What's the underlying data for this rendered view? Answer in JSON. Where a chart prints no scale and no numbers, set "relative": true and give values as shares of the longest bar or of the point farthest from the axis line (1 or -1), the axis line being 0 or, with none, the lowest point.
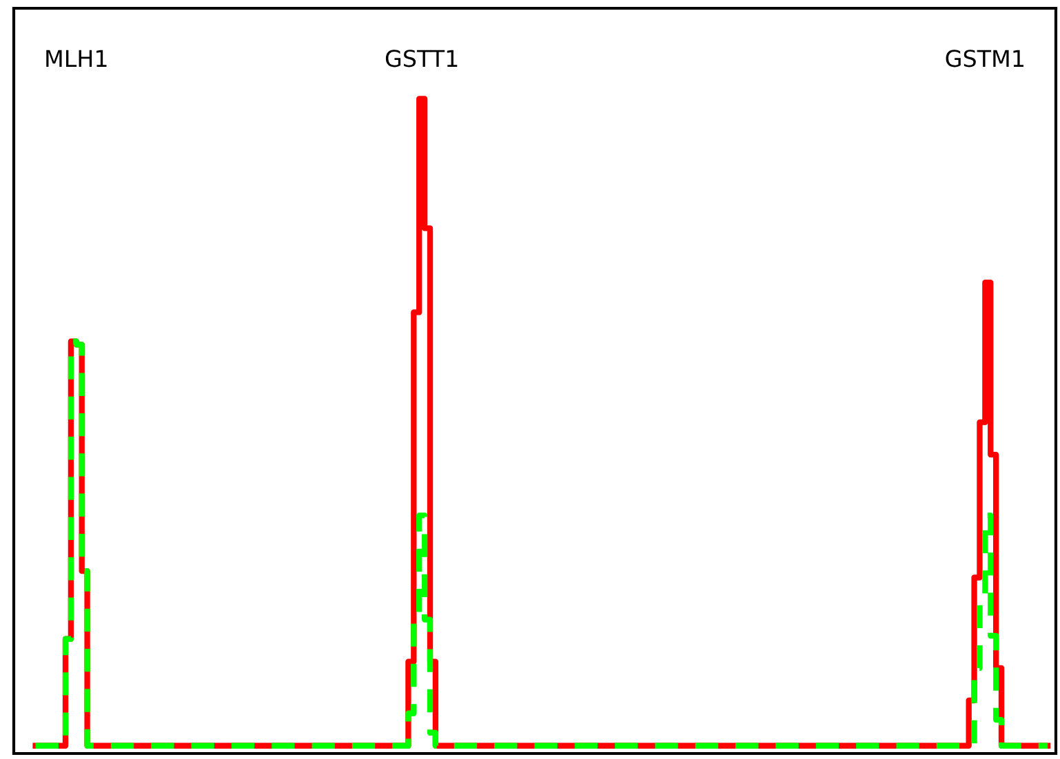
{
  "chart_data": {
    "type": "step",
    "relative": true,
    "categories": [
      null,
      null,
      null,
      null,
      null,
      null,
      null,
      null,
      null,
      null,
      null,
      null,
      null,
      null,
      null,
      null,
      null,
      null,
      null,
      null,
      null,
      null,
      null,
      null,
      null,
      null,
      null,
      null,
      null,
      null,
      null,
      null,
      null,
      null,
      null,
      null,
      null,
      null,
      null,
      null,
      null,
      null,
      null,
      null,
      null,
      null,
      null,
      null,
      null,
      null,
      null,
      null,
      null,
      null,
      null,
      null,
      null,
      null,
      null,
      null,
      null,
      null,
      null,
      null,
      null,
      null,
      null,
      null,
      null,
      null,
      null,
      null,
      null,
      null,
      null,
      null,
      null,
      null,
      null,
      null,
      null,
      null,
      null,
      null,
      null,
      null,
      null,
      null,
      null,
      null,
      null,
      null,
      null,
      null,
      null,
      null,
      null,
      null,
      null,
      null,
      null,
      null,
      null,
      null,
      null,
      null,
      null,
      null,
      null,
      null,
      null,
      null,
      null,
      null,
      null,
      null,
      null,
      null,
      null,
      null,
      null,
      null,
      null,
      null,
      null,
      null,
      null,
      null,
      null,
      null,
      null,
      null,
      null,
      null,
      null,
      null,
      null,
      null,
      null,
      null,
      null,
      null,
      null,
      null,
      null,
      null,
      null,
      null,
      null,
      null,
      null,
      null,
      null,
      null,
      null,
      null,
      null,
      null,
      null,
      null,
      null,
      null,
      null,
      null,
      null,
      null,
      null,
      null,
      null,
      null,
      null,
      null,
      null,
      null,
      null,
      null,
      null,
      null,
      null,
      null,
      null,
      null,
      null,
      null,
      null,
      null,
      null
    ],
    "series": [
      {
        "color": "#ff0000",
        "line_style": "solid",
        "values": [
          0,
          0,
          0,
          0,
          0,
          0,
          0.165,
          0.625,
          0.62,
          0.27,
          0,
          0,
          0,
          0,
          0,
          0,
          0,
          0,
          0,
          0,
          0,
          0,
          0,
          0,
          0,
          0,
          0,
          0,
          0,
          0,
          0,
          0,
          0,
          0,
          0,
          0,
          0,
          0,
          0,
          0,
          0,
          0,
          0,
          0,
          0,
          0,
          0,
          0,
          0,
          0,
          0,
          0,
          0,
          0,
          0,
          0,
          0,
          0,
          0,
          0,
          0,
          0,
          0,
          0,
          0,
          0,
          0,
          0,
          0,
          0.13,
          0.67,
          1.0,
          0.8,
          0.13,
          0,
          0,
          0,
          0,
          0,
          0,
          0,
          0,
          0,
          0,
          0,
          0,
          0,
          0,
          0,
          0,
          0,
          0,
          0,
          0,
          0,
          0,
          0,
          0,
          0,
          0,
          0,
          0,
          0,
          0,
          0,
          0,
          0,
          0,
          0,
          0,
          0,
          0,
          0,
          0,
          0,
          0,
          0,
          0,
          0,
          0,
          0,
          0,
          0,
          0,
          0,
          0,
          0,
          0,
          0,
          0,
          0,
          0,
          0,
          0,
          0,
          0,
          0,
          0,
          0,
          0,
          0,
          0,
          0,
          0,
          0,
          0,
          0,
          0,
          0,
          0,
          0,
          0,
          0,
          0,
          0,
          0,
          0,
          0,
          0,
          0,
          0,
          0,
          0,
          0,
          0,
          0,
          0,
          0,
          0,
          0,
          0,
          0,
          0.07,
          0.26,
          0.5,
          0.716,
          0.45,
          0.12,
          0,
          0,
          0,
          0,
          0,
          0,
          0,
          0,
          0
        ]
      },
      {
        "color": "#00ff00",
        "line_style": "dashed",
        "values": [
          0,
          0,
          0,
          0,
          0,
          0,
          0.165,
          0.625,
          0.62,
          0.27,
          0,
          0,
          0,
          0,
          0,
          0,
          0,
          0,
          0,
          0,
          0,
          0,
          0,
          0,
          0,
          0,
          0,
          0,
          0,
          0,
          0,
          0,
          0,
          0,
          0,
          0,
          0,
          0,
          0,
          0,
          0,
          0,
          0,
          0,
          0,
          0,
          0,
          0,
          0,
          0,
          0,
          0,
          0,
          0,
          0,
          0,
          0,
          0,
          0,
          0,
          0,
          0,
          0,
          0,
          0,
          0,
          0,
          0,
          0,
          0.05,
          0.195,
          0.356,
          0.195,
          0.02,
          0,
          0,
          0,
          0,
          0,
          0,
          0,
          0,
          0,
          0,
          0,
          0,
          0,
          0,
          0,
          0,
          0,
          0,
          0,
          0,
          0,
          0,
          0,
          0,
          0,
          0,
          0,
          0,
          0,
          0,
          0,
          0,
          0,
          0,
          0,
          0,
          0,
          0,
          0,
          0,
          0,
          0,
          0,
          0,
          0,
          0,
          0,
          0,
          0,
          0,
          0,
          0,
          0,
          0,
          0,
          0,
          0,
          0,
          0,
          0,
          0,
          0,
          0,
          0,
          0,
          0,
          0,
          0,
          0,
          0,
          0,
          0,
          0,
          0,
          0,
          0,
          0,
          0,
          0,
          0,
          0,
          0,
          0,
          0,
          0,
          0,
          0,
          0,
          0,
          0,
          0,
          0,
          0,
          0,
          0,
          0,
          0,
          0,
          0,
          0.12,
          0.22,
          0.356,
          0.17,
          0.04,
          0,
          0,
          0,
          0,
          0,
          0,
          0,
          0,
          0
        ]
      }
    ],
    "annotations": [
      "MLH1",
      "GSTT1",
      "GSTM1"
    ]
  }
}
